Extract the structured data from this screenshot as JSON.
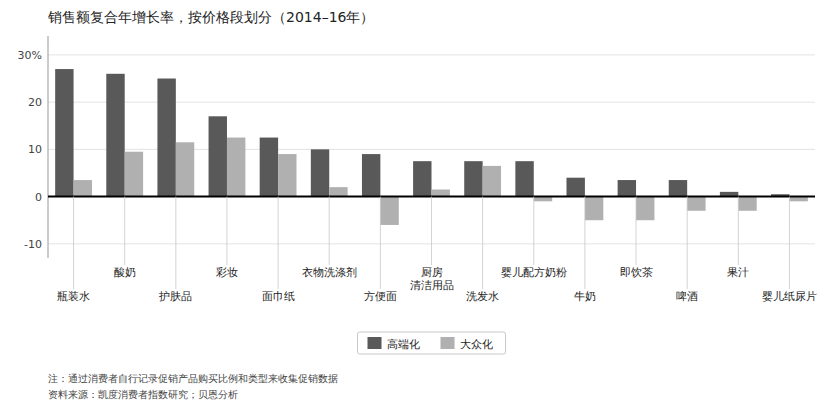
{
  "chart_data": {
    "type": "bar",
    "title": "销售额复合年增长率，按价格段划分（2014–16年）",
    "categories": [
      "瓶装水",
      "酸奶",
      "护肤品",
      "彩妆",
      "面巾纸",
      "衣物洗涤剂",
      "方便面",
      "厨房\n清洁用品",
      "洗发水",
      "婴儿配方奶粉",
      "牛奶",
      "即饮茶",
      "啤酒",
      "果汁",
      "婴儿纸尿片"
    ],
    "series": [
      {
        "name": "高端化",
        "color": "#595959",
        "values": [
          27,
          26,
          25,
          17,
          12.5,
          10,
          9,
          7.5,
          7.5,
          7.5,
          4,
          3.5,
          3.5,
          1,
          0.5
        ]
      },
      {
        "name": "大众化",
        "color": "#b0b0b0",
        "values": [
          3.5,
          9.5,
          11.5,
          12.5,
          9,
          2,
          -6,
          1.5,
          6.5,
          -1,
          -5,
          -5,
          -3,
          -3,
          -1
        ]
      }
    ],
    "ylim": [
      -13,
      34
    ],
    "yticks": [
      -10,
      0,
      10,
      20,
      {
        "value": 30,
        "label": "30%"
      }
    ],
    "grid": true,
    "legend": "bottom",
    "annotations": [
      "注：通过消费者自行记录促销产品购买比例和类型来收集促销数据",
      "资料来源：凯度消费者指数研究；贝恩分析"
    ]
  }
}
